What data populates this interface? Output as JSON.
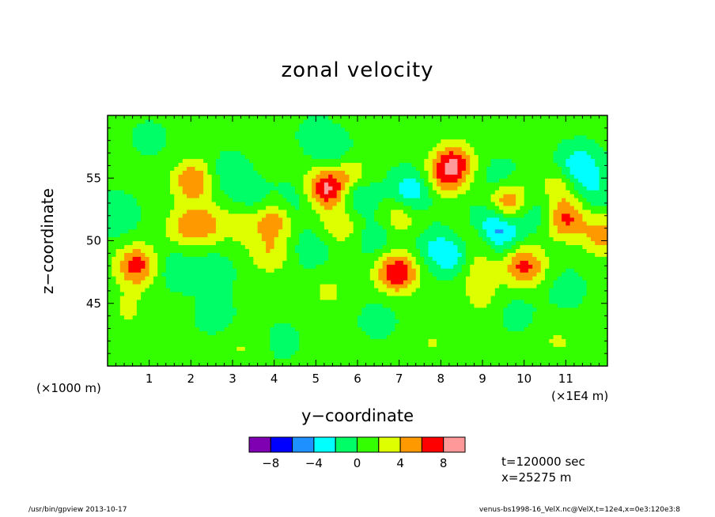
{
  "chart_data": {
    "type": "heatmap",
    "title": "zonal velocity",
    "xlabel": "y−coordinate",
    "ylabel": "z−coordinate",
    "x_unit": "(×1E4 m)",
    "y_unit": "(×1000 m)",
    "xlim": [
      0,
      12
    ],
    "ylim": [
      40,
      60
    ],
    "x_ticks": [
      "1",
      "2",
      "3",
      "4",
      "5",
      "6",
      "7",
      "8",
      "9",
      "10",
      "11"
    ],
    "y_ticks": [
      "45",
      "50",
      "55"
    ],
    "x_tick_values": [
      1,
      2,
      3,
      4,
      5,
      6,
      7,
      8,
      9,
      10,
      11
    ],
    "y_tick_values": [
      45,
      50,
      55
    ],
    "colorbar": {
      "levels": [
        -10,
        -8,
        -6,
        -4,
        -2,
        0,
        2,
        4,
        6,
        8,
        10
      ],
      "labels": [
        "−8",
        "−4",
        "0",
        "4",
        "8"
      ],
      "label_values": [
        -8,
        -4,
        0,
        4,
        8
      ],
      "colors": [
        "#7f00b2",
        "#0000ff",
        "#1e90ff",
        "#00ffff",
        "#00ff66",
        "#33ff00",
        "#ddff00",
        "#ff9900",
        "#ff0000",
        "#ff9999"
      ]
    },
    "background_value": 0.5,
    "features": [
      {
        "y": 0.7,
        "z": 48.0,
        "value": 6.5
      },
      {
        "y": 2.05,
        "z": 54.8,
        "value": 5.5
      },
      {
        "y": 2.3,
        "z": 51.3,
        "value": 4.2
      },
      {
        "y": 1.8,
        "z": 51.0,
        "value": 2.8
      },
      {
        "y": 3.25,
        "z": 51.5,
        "value": 3.0
      },
      {
        "y": 3.5,
        "z": 53.0,
        "value": -2.5
      },
      {
        "y": 2.9,
        "z": 55.3,
        "value": -2.2
      },
      {
        "y": 3.9,
        "z": 49.0,
        "value": 3.2
      },
      {
        "y": 4.0,
        "z": 51.8,
        "value": 4.8
      },
      {
        "y": 4.45,
        "z": 53.0,
        "value": -2.3
      },
      {
        "y": 5.25,
        "z": 54.2,
        "value": 7.8
      },
      {
        "y": 5.8,
        "z": 55.5,
        "value": 3.2
      },
      {
        "y": 5.6,
        "z": 51.2,
        "value": 3.0
      },
      {
        "y": 6.0,
        "z": 53.5,
        "value": -3.0
      },
      {
        "y": 5.45,
        "z": 56.8,
        "value": -2.6
      },
      {
        "y": 6.5,
        "z": 50.3,
        "value": -2.3
      },
      {
        "y": 6.95,
        "z": 47.5,
        "value": 7.6
      },
      {
        "y": 7.0,
        "z": 51.8,
        "value": 3.2
      },
      {
        "y": 7.3,
        "z": 54.0,
        "value": -4.2
      },
      {
        "y": 8.1,
        "z": 55.0,
        "value": 3.8
      },
      {
        "y": 8.3,
        "z": 56.2,
        "value": 6.3
      },
      {
        "y": 8.35,
        "z": 48.7,
        "value": -4.2
      },
      {
        "y": 8.8,
        "z": 47.8,
        "value": 3.0
      },
      {
        "y": 8.85,
        "z": 50.3,
        "value": 2.8
      },
      {
        "y": 9.1,
        "z": 51.5,
        "value": -2.8
      },
      {
        "y": 9.45,
        "z": 50.7,
        "value": -4.5
      },
      {
        "y": 9.4,
        "z": 54.8,
        "value": -2.3
      },
      {
        "y": 9.6,
        "z": 53.2,
        "value": 6.0
      },
      {
        "y": 10.0,
        "z": 48.0,
        "value": 6.3
      },
      {
        "y": 10.25,
        "z": 52.3,
        "value": -2.4
      },
      {
        "y": 11.0,
        "z": 51.8,
        "value": 6.0
      },
      {
        "y": 11.3,
        "z": 55.9,
        "value": -4.7
      },
      {
        "y": 10.85,
        "z": 54.5,
        "value": 3.0
      },
      {
        "y": 11.65,
        "z": 54.0,
        "value": -2.2
      },
      {
        "y": 0.2,
        "z": 52.0,
        "value": -2.2
      },
      {
        "y": 1.6,
        "z": 47.8,
        "value": -2.1
      },
      {
        "y": 2.5,
        "z": 47.5,
        "value": -2.1
      },
      {
        "y": 7.8,
        "z": 49.5,
        "value": -2.2
      },
      {
        "y": 4.9,
        "z": 49.4,
        "value": -2.0
      },
      {
        "y": 11.9,
        "z": 50.5,
        "value": 4.4
      },
      {
        "y": 2.6,
        "z": 44.0,
        "value": -1.4
      },
      {
        "y": 6.5,
        "z": 43.8,
        "value": -1.3
      },
      {
        "y": 9.8,
        "z": 44.3,
        "value": -1.3
      },
      {
        "y": 4.2,
        "z": 42.0,
        "value": -1.1
      },
      {
        "y": 11.0,
        "z": 46.2,
        "value": -1.4
      },
      {
        "y": 5.0,
        "z": 58.6,
        "value": -1.1
      },
      {
        "y": 1.0,
        "z": 58.2,
        "value": -1.0
      },
      {
        "y": 0.5,
        "z": 44.5,
        "value": 1.8
      },
      {
        "y": 5.3,
        "z": 46.0,
        "value": 1.9
      },
      {
        "y": 9.0,
        "z": 45.5,
        "value": 1.9
      },
      {
        "y": 3.2,
        "z": 41.5,
        "value": 1.6
      },
      {
        "y": 7.8,
        "z": 41.8,
        "value": 1.6
      },
      {
        "y": 10.8,
        "z": 42.0,
        "value": 1.7
      }
    ]
  },
  "time_label": "t=120000 sec",
  "x_label": "x=25275 m",
  "footer_left": "/usr/bin/gpview  2013-10-17",
  "footer_right": "venus-bs1998-16_VelX.nc@VelX,t=12e4,x=0e3:120e3:8"
}
